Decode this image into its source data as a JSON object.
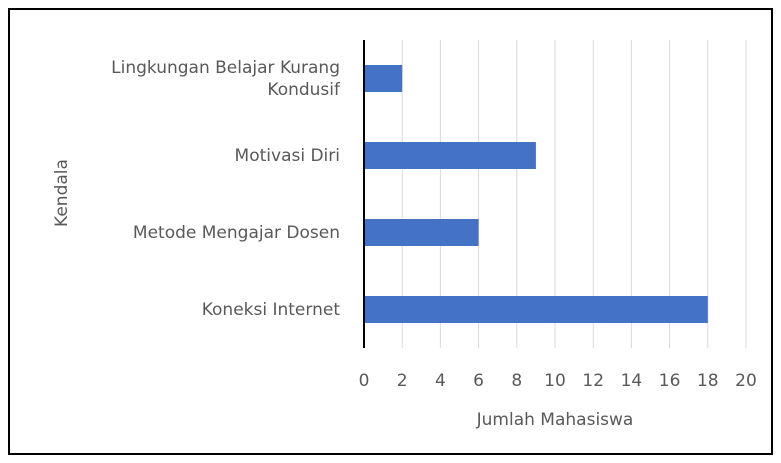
{
  "chart_data": {
    "type": "bar",
    "orientation": "horizontal",
    "categories": [
      "Koneksi Internet",
      "Metode Mengajar Dosen",
      "Motivasi Diri",
      "Lingkungan Belajar Kurang Kondusif"
    ],
    "values": [
      18,
      6,
      9,
      2
    ],
    "color": "#4472c4",
    "xlabel": "Jumlah Mahasiswa",
    "ylabel": "Kendala",
    "xlim": [
      0,
      20
    ],
    "xticks": [
      0,
      2,
      4,
      6,
      8,
      10,
      12,
      14,
      16,
      18,
      20
    ],
    "grid": true
  }
}
